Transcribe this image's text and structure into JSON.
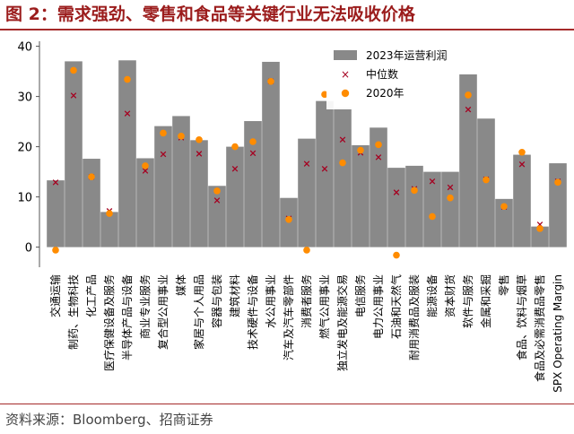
{
  "figure": {
    "title": "图 2：需求强劲、零售和食品等关键行业无法吸收价格",
    "source": "资料来源：Bloomberg、招商证券"
  },
  "colors": {
    "bar": "#898989",
    "median_marker": "#a50021",
    "dot_2020": "#ff8c00",
    "title": "#9b1c1c"
  },
  "chart_data": {
    "type": "bar",
    "ylim": [
      -4,
      41
    ],
    "yticks": [
      0,
      10,
      20,
      30,
      40
    ],
    "grid": false,
    "legend_position": "top-center",
    "categories": [
      "交通运输",
      "制药、生物科技",
      "化工产品",
      "医疗保健设备及服务",
      "半导体产品与设备",
      "商业专业服务",
      "复合型公用事业",
      "媒体",
      "家居与个人用品",
      "容器与包装",
      "建筑材料",
      "技术硬件与设备",
      "水公用事业",
      "汽车及汽车零部件",
      "消费者服务",
      "燃气公用事业",
      "独立发电及能源交易",
      "电信服务",
      "电力公用事业",
      "石油和天然气",
      "耐用消费品及服装",
      "能源设备",
      "资本财货",
      "软件与服务",
      "金属和采掘",
      "零售",
      "食品、饮料与烟草",
      "食品及必需消费品零售",
      "SPX Operating Margin"
    ],
    "series": [
      {
        "name": "2023年运营利润",
        "kind": "bar",
        "values": [
          13.3,
          37.0,
          17.6,
          7.0,
          37.2,
          17.7,
          24.1,
          26.1,
          21.3,
          12.2,
          20.0,
          25.1,
          36.9,
          9.8,
          21.6,
          29.1,
          27.7,
          20.3,
          23.8,
          15.8,
          16.2,
          15.0,
          15.0,
          34.4,
          25.6,
          9.6,
          18.4,
          4.1,
          16.7
        ]
      },
      {
        "name": "中位数",
        "kind": "marker",
        "values": [
          12.9,
          30.2,
          14.0,
          7.2,
          26.6,
          15.2,
          18.5,
          21.8,
          18.6,
          9.3,
          15.6,
          18.7,
          33.0,
          5.7,
          16.6,
          15.6,
          21.4,
          18.8,
          17.9,
          10.9,
          11.6,
          13.1,
          11.9,
          27.4,
          13.5,
          8.0,
          16.5,
          4.5,
          13.1
        ]
      },
      {
        "name": "2020年",
        "kind": "dot",
        "values": [
          -0.6,
          35.2,
          14.0,
          6.7,
          33.4,
          16.2,
          22.7,
          22.1,
          21.4,
          11.2,
          20.0,
          21.0,
          33.0,
          5.5,
          -0.6,
          30.4,
          16.8,
          19.3,
          20.4,
          -1.6,
          11.3,
          6.1,
          9.8,
          30.3,
          13.4,
          8.1,
          18.9,
          3.7,
          12.9
        ]
      }
    ]
  }
}
